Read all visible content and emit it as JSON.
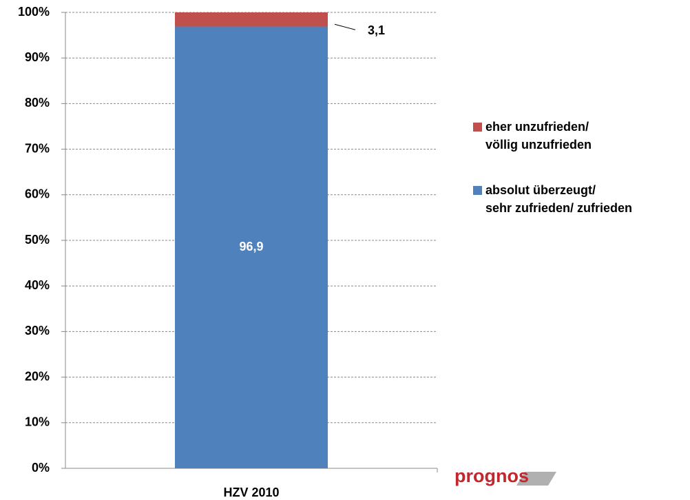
{
  "chart_data": {
    "type": "stacked_bar",
    "categories": [
      "HZV 2010"
    ],
    "series": [
      {
        "name": "absolut überzeugt/\nsehr zufrieden/ zufrieden",
        "color": "#4f81bd",
        "values": [
          96.9
        ],
        "value_labels": [
          "96,9"
        ]
      },
      {
        "name": "eher unzufrieden/\nvöllig unzufrieden",
        "color": "#c0504d",
        "values": [
          3.1
        ],
        "value_labels": [
          "3,1"
        ]
      }
    ],
    "ylim": [
      0,
      100
    ],
    "yticks": [
      {
        "value": 0,
        "label": "0%"
      },
      {
        "value": 10,
        "label": "10%"
      },
      {
        "value": 20,
        "label": "20%"
      },
      {
        "value": 30,
        "label": "30%"
      },
      {
        "value": 40,
        "label": "40%"
      },
      {
        "value": 50,
        "label": "50%"
      },
      {
        "value": 60,
        "label": "60%"
      },
      {
        "value": 70,
        "label": "70%"
      },
      {
        "value": 80,
        "label": "80%"
      },
      {
        "value": 90,
        "label": "90%"
      },
      {
        "value": 100,
        "label": "100%"
      }
    ],
    "grid": true,
    "legend": "right",
    "logo": "prognos"
  }
}
